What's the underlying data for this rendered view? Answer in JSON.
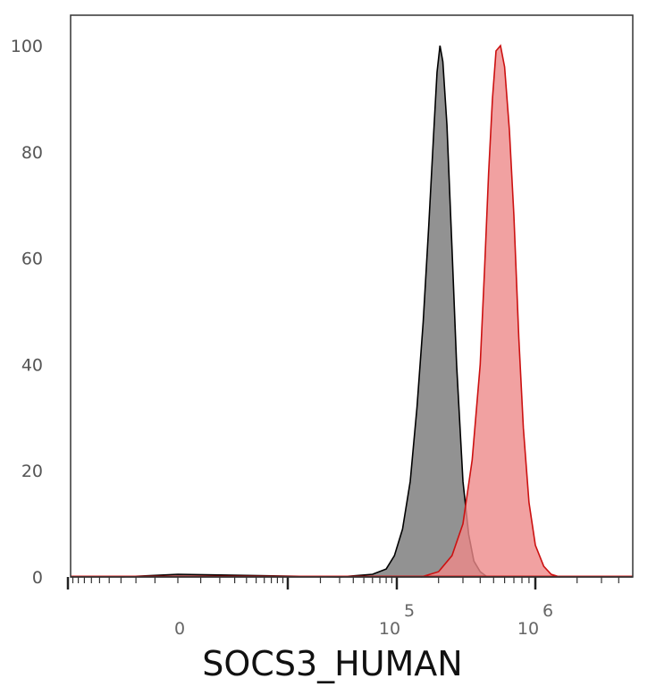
{
  "chart_data": {
    "type": "area",
    "title": "",
    "xlabel": "SOCS3_HUMAN",
    "ylabel": "",
    "x_scale": "biexponential",
    "x_ticks": [
      {
        "value": 0,
        "label": "0",
        "exp": ""
      },
      {
        "value": 100000,
        "label": "10",
        "exp": "5"
      },
      {
        "value": 1000000,
        "label": "10",
        "exp": "6"
      }
    ],
    "y_ticks": [
      "0",
      "20",
      "40",
      "60",
      "80",
      "100"
    ],
    "ylim": [
      0,
      100
    ],
    "grid": false,
    "legend": "none",
    "series": [
      {
        "color": "#000000",
        "fill": "#8c8c8c",
        "x": [
          -3000,
          0,
          30000,
          60000,
          80000,
          95000,
          110000,
          125000,
          140000,
          155000,
          170000,
          185000,
          195000,
          205000,
          215000,
          230000,
          250000,
          270000,
          300000,
          330000,
          360000,
          400000,
          450000
        ],
        "y": [
          0,
          0.5,
          0,
          0.5,
          1.5,
          4,
          9,
          18,
          32,
          48,
          66,
          84,
          95,
          100,
          97,
          85,
          62,
          40,
          18,
          8,
          3,
          1,
          0
        ]
      },
      {
        "color": "#cc1111",
        "fill": "#ee8a8a",
        "x": [
          150000,
          200000,
          250000,
          300000,
          350000,
          400000,
          430000,
          460000,
          490000,
          520000,
          560000,
          600000,
          650000,
          700000,
          760000,
          820000,
          900000,
          1000000,
          1150000,
          1300000,
          1500000
        ],
        "y": [
          0,
          1,
          4,
          10,
          22,
          40,
          58,
          76,
          90,
          99,
          100,
          96,
          84,
          68,
          45,
          28,
          14,
          6,
          2,
          0.5,
          0
        ]
      }
    ]
  }
}
